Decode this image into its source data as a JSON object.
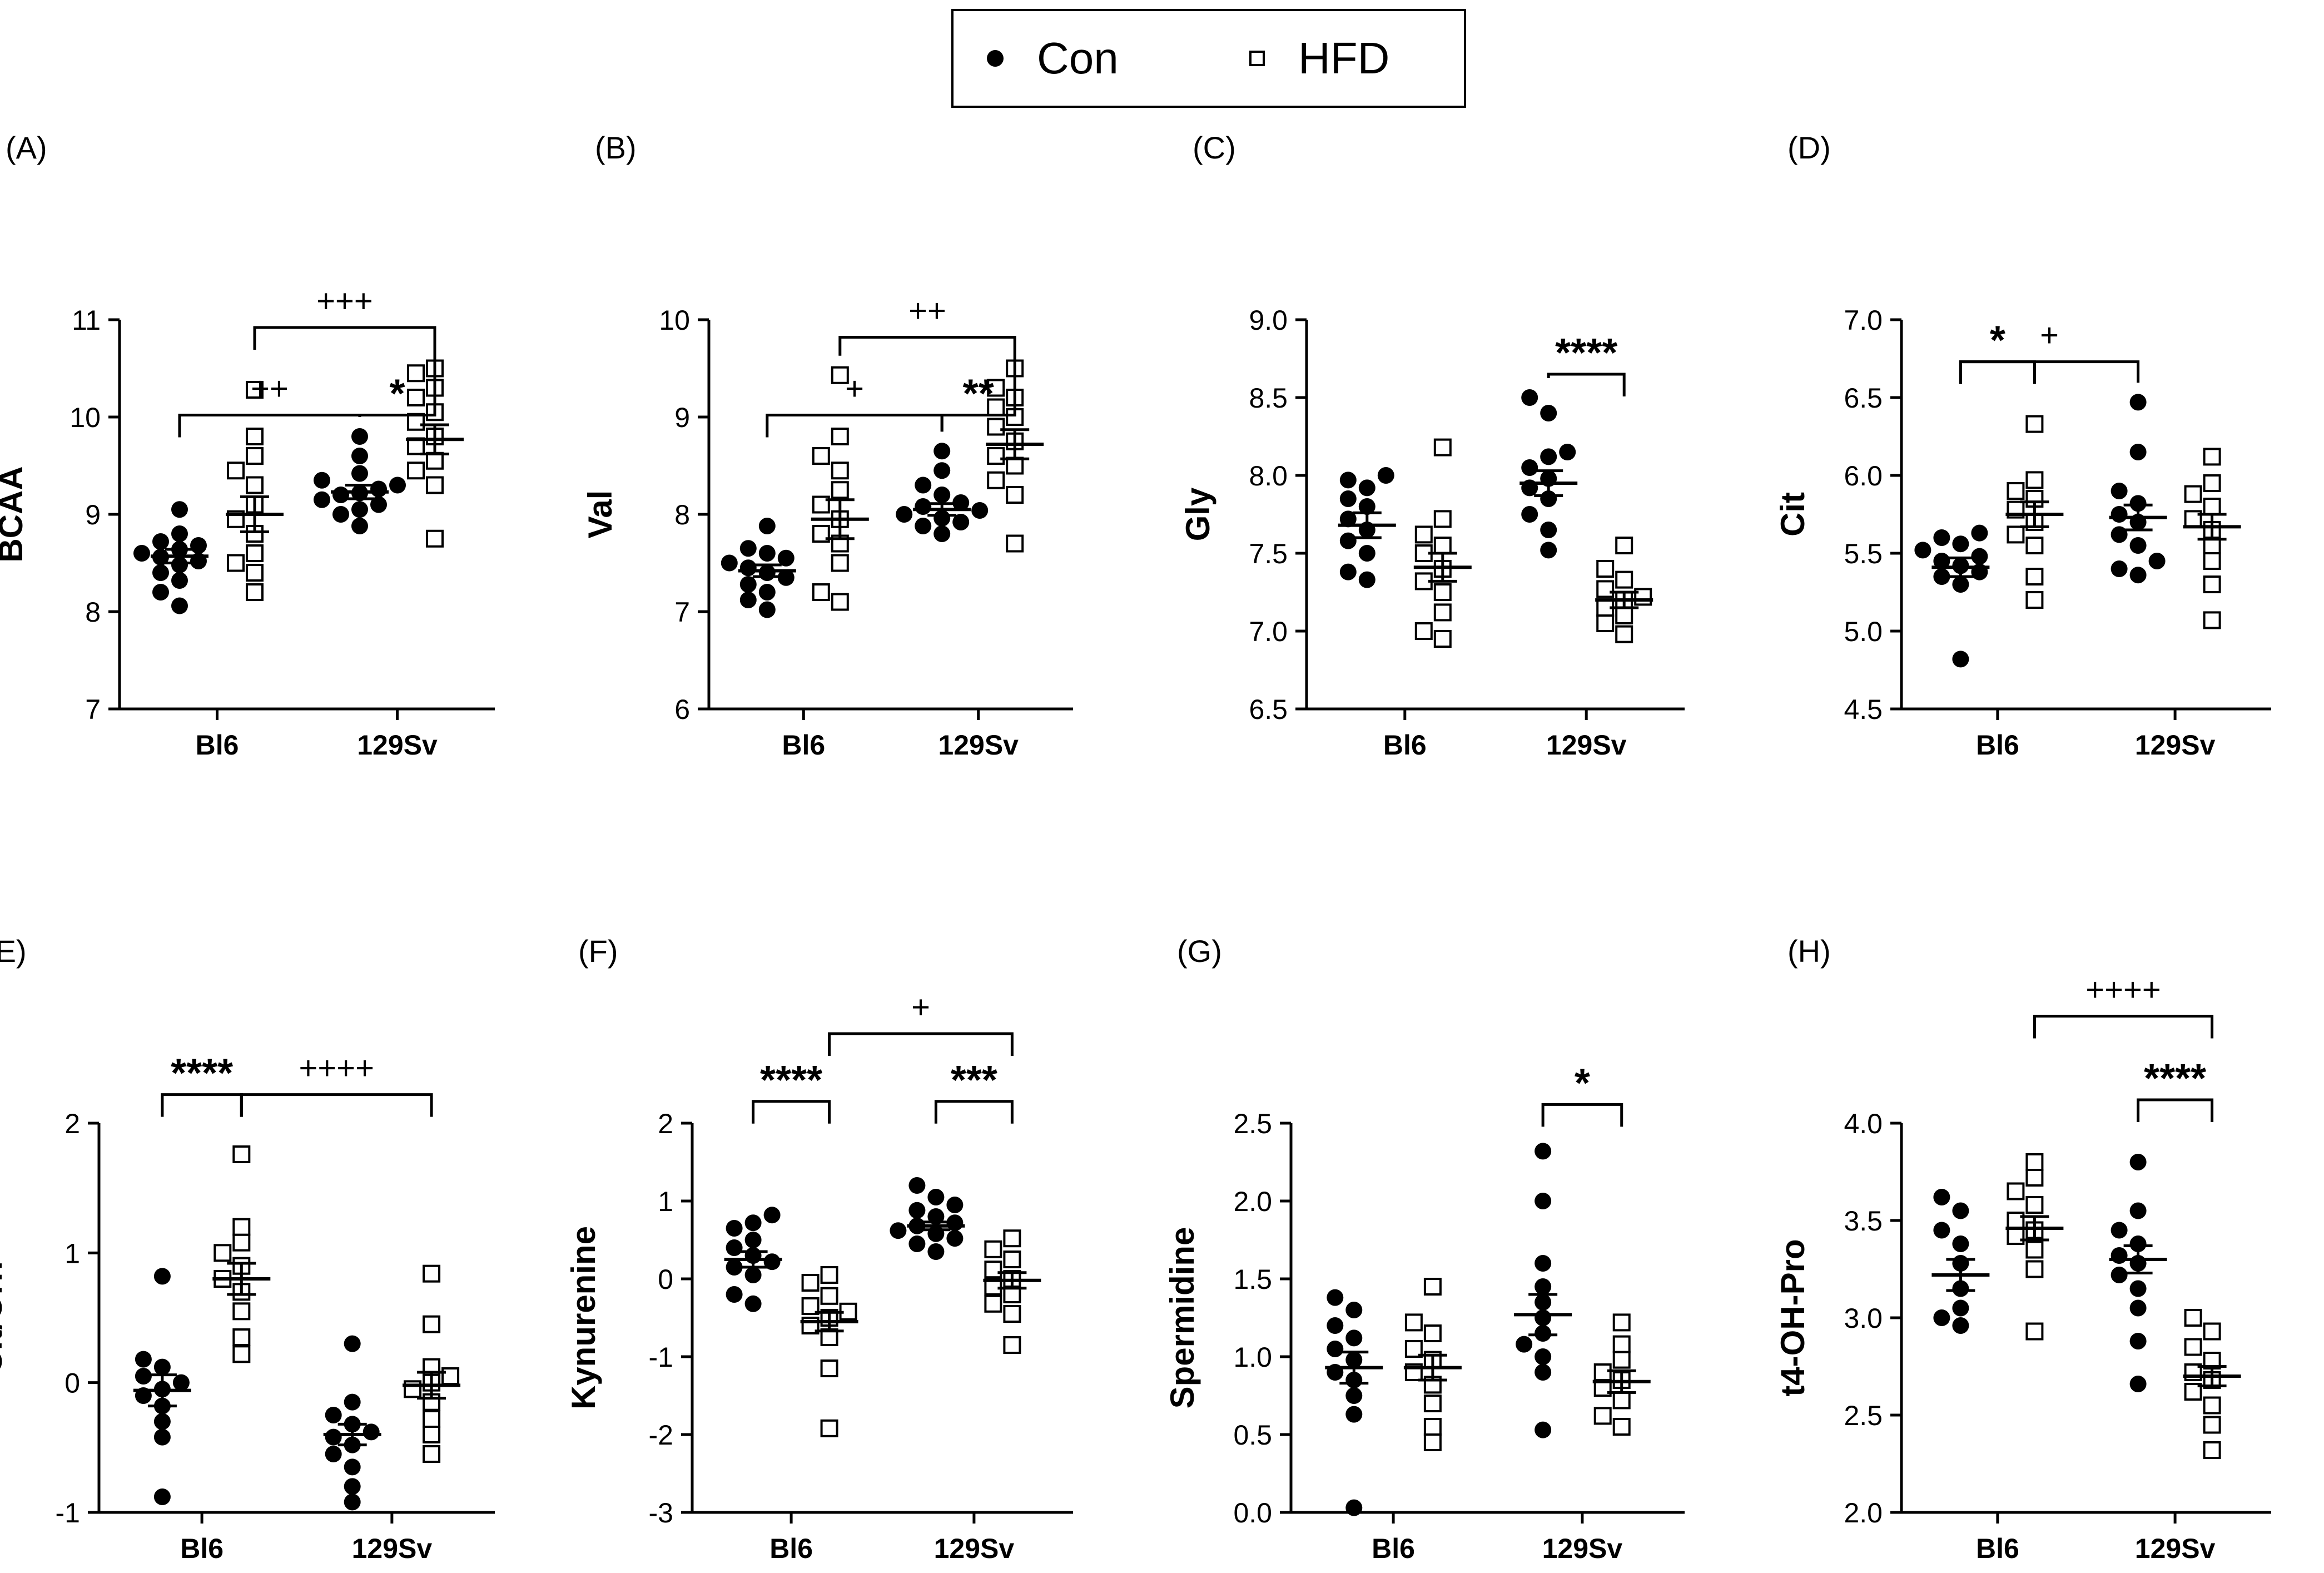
{
  "legend": {
    "con_label": "Con",
    "hfd_label": "HFD"
  },
  "colors": {
    "ink": "#000000",
    "background": "#ffffff"
  },
  "chart_data": [
    {
      "type": "scatter",
      "panel": "(A)",
      "ylabel": "BCAA",
      "categories": [
        "Bl6",
        "129Sv"
      ],
      "ylim": [
        7,
        11
      ],
      "yticks": [
        7,
        8,
        9,
        10,
        11
      ],
      "series": [
        {
          "name": "Con",
          "marker": "filled-circle",
          "means": [
            8.57,
            9.23
          ],
          "sems": [
            0.07,
            0.07
          ],
          "points": [
            [
              8.06,
              8.2,
              8.32,
              8.4,
              8.48,
              8.52,
              8.56,
              8.6,
              8.64,
              8.68,
              8.72,
              8.8,
              9.05
            ],
            [
              8.88,
              9.0,
              9.05,
              9.1,
              9.15,
              9.2,
              9.22,
              9.26,
              9.3,
              9.35,
              9.42,
              9.6,
              9.8
            ]
          ]
        },
        {
          "name": "HFD",
          "marker": "open-square",
          "means": [
            9.0,
            9.77
          ],
          "sems": [
            0.18,
            0.15
          ],
          "points": [
            [
              8.2,
              8.4,
              8.5,
              8.6,
              8.8,
              8.95,
              9.1,
              9.3,
              9.45,
              9.6,
              9.8,
              10.28
            ],
            [
              8.75,
              9.3,
              9.45,
              9.55,
              9.7,
              9.8,
              9.95,
              10.05,
              10.2,
              10.3,
              10.45,
              10.5
            ]
          ]
        }
      ],
      "brackets": [
        {
          "from": "Bl6-Con",
          "to": "129Sv-Con",
          "label": "++",
          "y": 10.02
        },
        {
          "from": "129Sv-Con",
          "to": "129Sv-HFD",
          "label": "*",
          "y": 10.02
        },
        {
          "from": "Bl6-HFD",
          "to": "129Sv-HFD",
          "label": "+++",
          "y": 10.92
        }
      ]
    },
    {
      "type": "scatter",
      "panel": "(B)",
      "ylabel": "Val",
      "categories": [
        "Bl6",
        "129Sv"
      ],
      "ylim": [
        6,
        10
      ],
      "yticks": [
        6,
        7,
        8,
        9,
        10
      ],
      "series": [
        {
          "name": "Con",
          "marker": "filled-circle",
          "means": [
            7.42,
            8.05
          ],
          "sems": [
            0.06,
            0.06
          ],
          "points": [
            [
              7.02,
              7.12,
              7.2,
              7.28,
              7.35,
              7.4,
              7.45,
              7.5,
              7.55,
              7.6,
              7.65,
              7.88
            ],
            [
              7.8,
              7.88,
              7.92,
              7.96,
              8.0,
              8.04,
              8.08,
              8.12,
              8.2,
              8.3,
              8.45,
              8.65
            ]
          ]
        },
        {
          "name": "HFD",
          "marker": "open-square",
          "means": [
            7.95,
            8.72
          ],
          "sems": [
            0.2,
            0.15
          ],
          "points": [
            [
              7.1,
              7.2,
              7.5,
              7.7,
              7.8,
              7.95,
              8.1,
              8.25,
              8.45,
              8.6,
              8.8,
              9.43
            ],
            [
              7.7,
              8.2,
              8.35,
              8.5,
              8.6,
              8.75,
              8.9,
              9.0,
              9.1,
              9.2,
              9.3,
              9.5
            ]
          ]
        }
      ],
      "brackets": [
        {
          "from": "Bl6-Con",
          "to": "129Sv-Con",
          "label": "+",
          "y": 9.02
        },
        {
          "from": "129Sv-Con",
          "to": "129Sv-HFD",
          "label": "**",
          "y": 9.02
        },
        {
          "from": "Bl6-HFD",
          "to": "129Sv-HFD",
          "label": "++",
          "y": 9.82
        }
      ]
    },
    {
      "type": "scatter",
      "panel": "(C)",
      "ylabel": "Gly",
      "categories": [
        "Bl6",
        "129Sv"
      ],
      "ylim": [
        6.5,
        9.0
      ],
      "yticks": [
        "6.5",
        "7.0",
        "7.5",
        "8.0",
        "8.5",
        "9.0"
      ],
      "series": [
        {
          "name": "Con",
          "marker": "filled-circle",
          "means": [
            7.68,
            7.95
          ],
          "sems": [
            0.08,
            0.08
          ],
          "points": [
            [
              7.33,
              7.38,
              7.5,
              7.58,
              7.65,
              7.72,
              7.8,
              7.85,
              7.92,
              7.97,
              8.0
            ],
            [
              7.52,
              7.65,
              7.75,
              7.85,
              7.92,
              7.98,
              8.05,
              8.12,
              8.15,
              8.4,
              8.5
            ]
          ]
        },
        {
          "name": "HFD",
          "marker": "open-square",
          "means": [
            7.41,
            7.2
          ],
          "sems": [
            0.09,
            0.05
          ],
          "points": [
            [
              6.95,
              7.0,
              7.12,
              7.25,
              7.32,
              7.4,
              7.5,
              7.55,
              7.62,
              7.72,
              8.18
            ],
            [
              6.98,
              7.05,
              7.1,
              7.15,
              7.2,
              7.22,
              7.27,
              7.33,
              7.4,
              7.55
            ]
          ]
        }
      ],
      "brackets": [
        {
          "from": "129Sv-Con",
          "to": "129Sv-HFD",
          "label": "****",
          "y": 8.65
        }
      ]
    },
    {
      "type": "scatter",
      "panel": "(D)",
      "ylabel": "Cit",
      "categories": [
        "Bl6",
        "129Sv"
      ],
      "ylim": [
        4.5,
        7.0
      ],
      "yticks": [
        "4.5",
        "5.0",
        "5.5",
        "6.0",
        "6.5",
        "7.0"
      ],
      "series": [
        {
          "name": "Con",
          "marker": "filled-circle",
          "means": [
            5.41,
            5.73
          ],
          "sems": [
            0.06,
            0.08
          ],
          "points": [
            [
              4.82,
              5.3,
              5.35,
              5.38,
              5.42,
              5.45,
              5.48,
              5.52,
              5.56,
              5.6,
              5.63
            ],
            [
              5.36,
              5.4,
              5.45,
              5.55,
              5.62,
              5.7,
              5.75,
              5.82,
              5.9,
              6.15,
              6.47
            ]
          ]
        },
        {
          "name": "HFD",
          "marker": "open-square",
          "means": [
            5.75,
            5.67
          ],
          "sems": [
            0.08,
            0.08
          ],
          "points": [
            [
              5.2,
              5.35,
              5.55,
              5.62,
              5.7,
              5.78,
              5.85,
              5.9,
              5.97,
              6.33
            ],
            [
              5.07,
              5.3,
              5.45,
              5.55,
              5.65,
              5.72,
              5.8,
              5.88,
              5.95,
              6.12
            ]
          ]
        }
      ],
      "brackets": [
        {
          "from": "Bl6-Con",
          "to": "Bl6-HFD",
          "label": "*",
          "y": 6.73
        },
        {
          "from": "Bl6-Con",
          "to": "129Sv-Con",
          "label": "+",
          "y": 6.73
        }
      ]
    },
    {
      "type": "scatter",
      "panel": "(E)",
      "ylabel": "Cit/Orn",
      "categories": [
        "Bl6",
        "129Sv"
      ],
      "ylim": [
        -1,
        2
      ],
      "yticks": [
        -1,
        0,
        1,
        2
      ],
      "series": [
        {
          "name": "Con",
          "marker": "filled-circle",
          "means": [
            -0.06,
            -0.4
          ],
          "sems": [
            0.12,
            0.08
          ],
          "points": [
            [
              -0.88,
              -0.42,
              -0.3,
              -0.18,
              -0.1,
              -0.05,
              0.0,
              0.05,
              0.12,
              0.18,
              0.82
            ],
            [
              -0.92,
              -0.8,
              -0.65,
              -0.55,
              -0.48,
              -0.42,
              -0.38,
              -0.32,
              -0.25,
              -0.15,
              0.3
            ]
          ]
        },
        {
          "name": "HFD",
          "marker": "open-square",
          "means": [
            0.8,
            -0.02
          ],
          "sems": [
            0.12,
            0.1
          ],
          "points": [
            [
              0.22,
              0.35,
              0.55,
              0.7,
              0.8,
              0.9,
              1.0,
              1.08,
              1.2,
              1.76
            ],
            [
              -0.55,
              -0.4,
              -0.28,
              -0.15,
              -0.05,
              0.0,
              0.05,
              0.12,
              0.45,
              0.84
            ]
          ]
        }
      ],
      "brackets": [
        {
          "from": "Bl6-Con",
          "to": "Bl6-HFD",
          "label": "****",
          "y": 2.22
        },
        {
          "from": "Bl6-HFD",
          "to": "129Sv-HFD",
          "label": "++++",
          "y": 2.22
        }
      ]
    },
    {
      "type": "scatter",
      "panel": "(F)",
      "ylabel": "Kynurenine",
      "categories": [
        "Bl6",
        "129Sv"
      ],
      "ylim": [
        -3,
        2
      ],
      "yticks": [
        -3,
        -2,
        -1,
        0,
        1,
        2
      ],
      "series": [
        {
          "name": "Con",
          "marker": "filled-circle",
          "means": [
            0.25,
            0.68
          ],
          "sems": [
            0.1,
            0.05
          ],
          "points": [
            [
              -0.32,
              -0.2,
              0.05,
              0.15,
              0.22,
              0.3,
              0.4,
              0.5,
              0.65,
              0.72,
              0.82
            ],
            [
              0.35,
              0.45,
              0.52,
              0.58,
              0.62,
              0.68,
              0.72,
              0.8,
              0.88,
              0.95,
              1.05,
              1.2
            ]
          ]
        },
        {
          "name": "HFD",
          "marker": "open-square",
          "means": [
            -0.55,
            -0.02
          ],
          "sems": [
            0.12,
            0.1
          ],
          "points": [
            [
              -1.92,
              -1.15,
              -0.75,
              -0.6,
              -0.5,
              -0.42,
              -0.35,
              -0.22,
              -0.05,
              0.05
            ],
            [
              -0.85,
              -0.45,
              -0.32,
              -0.2,
              -0.1,
              0.0,
              0.12,
              0.25,
              0.38,
              0.52
            ]
          ]
        }
      ],
      "brackets": [
        {
          "from": "Bl6-Con",
          "to": "Bl6-HFD",
          "label": "****",
          "y": 2.28
        },
        {
          "from": "129Sv-Con",
          "to": "129Sv-HFD",
          "label": "***",
          "y": 2.28
        },
        {
          "from": "Bl6-HFD",
          "to": "129Sv-HFD",
          "label": "+",
          "y": 3.15
        }
      ]
    },
    {
      "type": "scatter",
      "panel": "(G)",
      "ylabel": "Spermidine",
      "categories": [
        "Bl6",
        "129Sv"
      ],
      "ylim": [
        0.0,
        2.5
      ],
      "yticks": [
        "0.0",
        "0.5",
        "1.0",
        "1.5",
        "2.0",
        "2.5"
      ],
      "series": [
        {
          "name": "Con",
          "marker": "filled-circle",
          "means": [
            0.93,
            1.27
          ],
          "sems": [
            0.1,
            0.13
          ],
          "points": [
            [
              0.03,
              0.63,
              0.75,
              0.85,
              0.9,
              0.98,
              1.05,
              1.12,
              1.2,
              1.3,
              1.38
            ],
            [
              0.53,
              0.9,
              1.0,
              1.08,
              1.15,
              1.25,
              1.35,
              1.45,
              1.6,
              2.0,
              2.32
            ]
          ]
        },
        {
          "name": "HFD",
          "marker": "open-square",
          "means": [
            0.93,
            0.84
          ],
          "sems": [
            0.08,
            0.07
          ],
          "points": [
            [
              0.45,
              0.55,
              0.7,
              0.82,
              0.9,
              0.98,
              1.05,
              1.15,
              1.22,
              1.45
            ],
            [
              0.55,
              0.62,
              0.72,
              0.8,
              0.85,
              0.9,
              0.98,
              1.08,
              1.22
            ]
          ]
        }
      ],
      "brackets": [
        {
          "from": "129Sv-Con",
          "to": "129Sv-HFD",
          "label": "*",
          "y": 2.62
        }
      ]
    },
    {
      "type": "scatter",
      "panel": "(H)",
      "ylabel": "t4-OH-Pro",
      "categories": [
        "Bl6",
        "129Sv"
      ],
      "ylim": [
        2.0,
        4.0
      ],
      "yticks": [
        "2.0",
        "2.5",
        "3.0",
        "3.5",
        "4.0"
      ],
      "series": [
        {
          "name": "Con",
          "marker": "filled-circle",
          "means": [
            3.22,
            3.3
          ],
          "sems": [
            0.08,
            0.07
          ],
          "points": [
            [
              2.96,
              3.0,
              3.05,
              3.15,
              3.28,
              3.38,
              3.45,
              3.55,
              3.62
            ],
            [
              2.66,
              2.88,
              3.05,
              3.15,
              3.22,
              3.28,
              3.32,
              3.38,
              3.45,
              3.55,
              3.8
            ]
          ]
        },
        {
          "name": "HFD",
          "marker": "open-square",
          "means": [
            3.46,
            2.7
          ],
          "sems": [
            0.06,
            0.05
          ],
          "points": [
            [
              2.93,
              3.25,
              3.35,
              3.42,
              3.45,
              3.5,
              3.58,
              3.65,
              3.72,
              3.8
            ],
            [
              2.32,
              2.45,
              2.55,
              2.62,
              2.68,
              2.72,
              2.78,
              2.85,
              2.93,
              3.0
            ]
          ]
        }
      ],
      "brackets": [
        {
          "from": "129Sv-Con",
          "to": "129Sv-HFD",
          "label": "****",
          "y": 4.12
        },
        {
          "from": "Bl6-HFD",
          "to": "129Sv-HFD",
          "label": "++++",
          "y": 4.55
        }
      ]
    }
  ]
}
